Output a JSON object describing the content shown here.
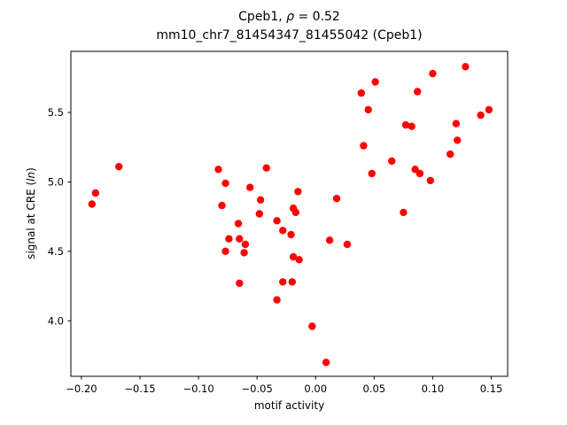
{
  "figure": {
    "title_line1": {
      "prefix": "Cpeb1, ",
      "rho": "ρ",
      "suffix": " = 0.52"
    },
    "title_line2": "mm10_chr7_81454347_81455042 (Cpeb1)",
    "xlabel": "motif activity",
    "ylabel": {
      "prefix": "signal at CRE (",
      "italic": "ln",
      "suffix": ")"
    }
  },
  "chart_data": {
    "type": "scatter",
    "title": "Cpeb1, ρ = 0.52",
    "subtitle": "mm10_chr7_81454347_81455042 (Cpeb1)",
    "correlation_rho": 0.52,
    "xlabel": "motif activity",
    "ylabel": "signal at CRE (ln)",
    "marker_color": "#ff0000",
    "axis_color": "#000000",
    "background_color": "#ffffff",
    "grid": false,
    "legend": "none",
    "xlim": [
      -0.209,
      0.164
    ],
    "ylim": [
      3.6,
      5.94
    ],
    "x_ticks": [
      -0.2,
      -0.15,
      -0.1,
      -0.05,
      0.0,
      0.05,
      0.1,
      0.15
    ],
    "x_tick_labels": [
      "−0.20",
      "−0.15",
      "−0.10",
      "−0.05",
      "0.00",
      "0.05",
      "0.10",
      "0.15"
    ],
    "y_ticks": [
      4.0,
      4.5,
      5.0,
      5.5
    ],
    "y_tick_labels": [
      "4.0",
      "4.5",
      "5.0",
      "5.5"
    ],
    "points": [
      [
        -0.191,
        4.84
      ],
      [
        -0.188,
        4.92
      ],
      [
        -0.168,
        5.11
      ],
      [
        -0.083,
        5.09
      ],
      [
        -0.08,
        4.83
      ],
      [
        -0.077,
        4.99
      ],
      [
        -0.077,
        4.5
      ],
      [
        -0.074,
        4.59
      ],
      [
        -0.066,
        4.7
      ],
      [
        -0.065,
        4.59
      ],
      [
        -0.065,
        4.27
      ],
      [
        -0.061,
        4.49
      ],
      [
        -0.06,
        4.55
      ],
      [
        -0.056,
        4.96
      ],
      [
        -0.048,
        4.77
      ],
      [
        -0.047,
        4.87
      ],
      [
        -0.042,
        5.1
      ],
      [
        -0.033,
        4.72
      ],
      [
        -0.033,
        4.15
      ],
      [
        -0.028,
        4.65
      ],
      [
        -0.028,
        4.28
      ],
      [
        -0.021,
        4.62
      ],
      [
        -0.02,
        4.28
      ],
      [
        -0.019,
        4.81
      ],
      [
        -0.019,
        4.46
      ],
      [
        -0.017,
        4.78
      ],
      [
        -0.015,
        4.93
      ],
      [
        -0.014,
        4.44
      ],
      [
        -0.003,
        3.96
      ],
      [
        0.009,
        3.7
      ],
      [
        0.012,
        4.58
      ],
      [
        0.018,
        4.88
      ],
      [
        0.027,
        4.55
      ],
      [
        0.039,
        5.64
      ],
      [
        0.041,
        5.26
      ],
      [
        0.045,
        5.52
      ],
      [
        0.048,
        5.06
      ],
      [
        0.051,
        5.72
      ],
      [
        0.065,
        5.15
      ],
      [
        0.075,
        4.78
      ],
      [
        0.077,
        5.41
      ],
      [
        0.082,
        5.4
      ],
      [
        0.085,
        5.09
      ],
      [
        0.087,
        5.65
      ],
      [
        0.089,
        5.06
      ],
      [
        0.098,
        5.01
      ],
      [
        0.1,
        5.78
      ],
      [
        0.115,
        5.2
      ],
      [
        0.12,
        5.42
      ],
      [
        0.121,
        5.3
      ],
      [
        0.128,
        5.83
      ],
      [
        0.141,
        5.48
      ],
      [
        0.148,
        5.52
      ]
    ]
  }
}
